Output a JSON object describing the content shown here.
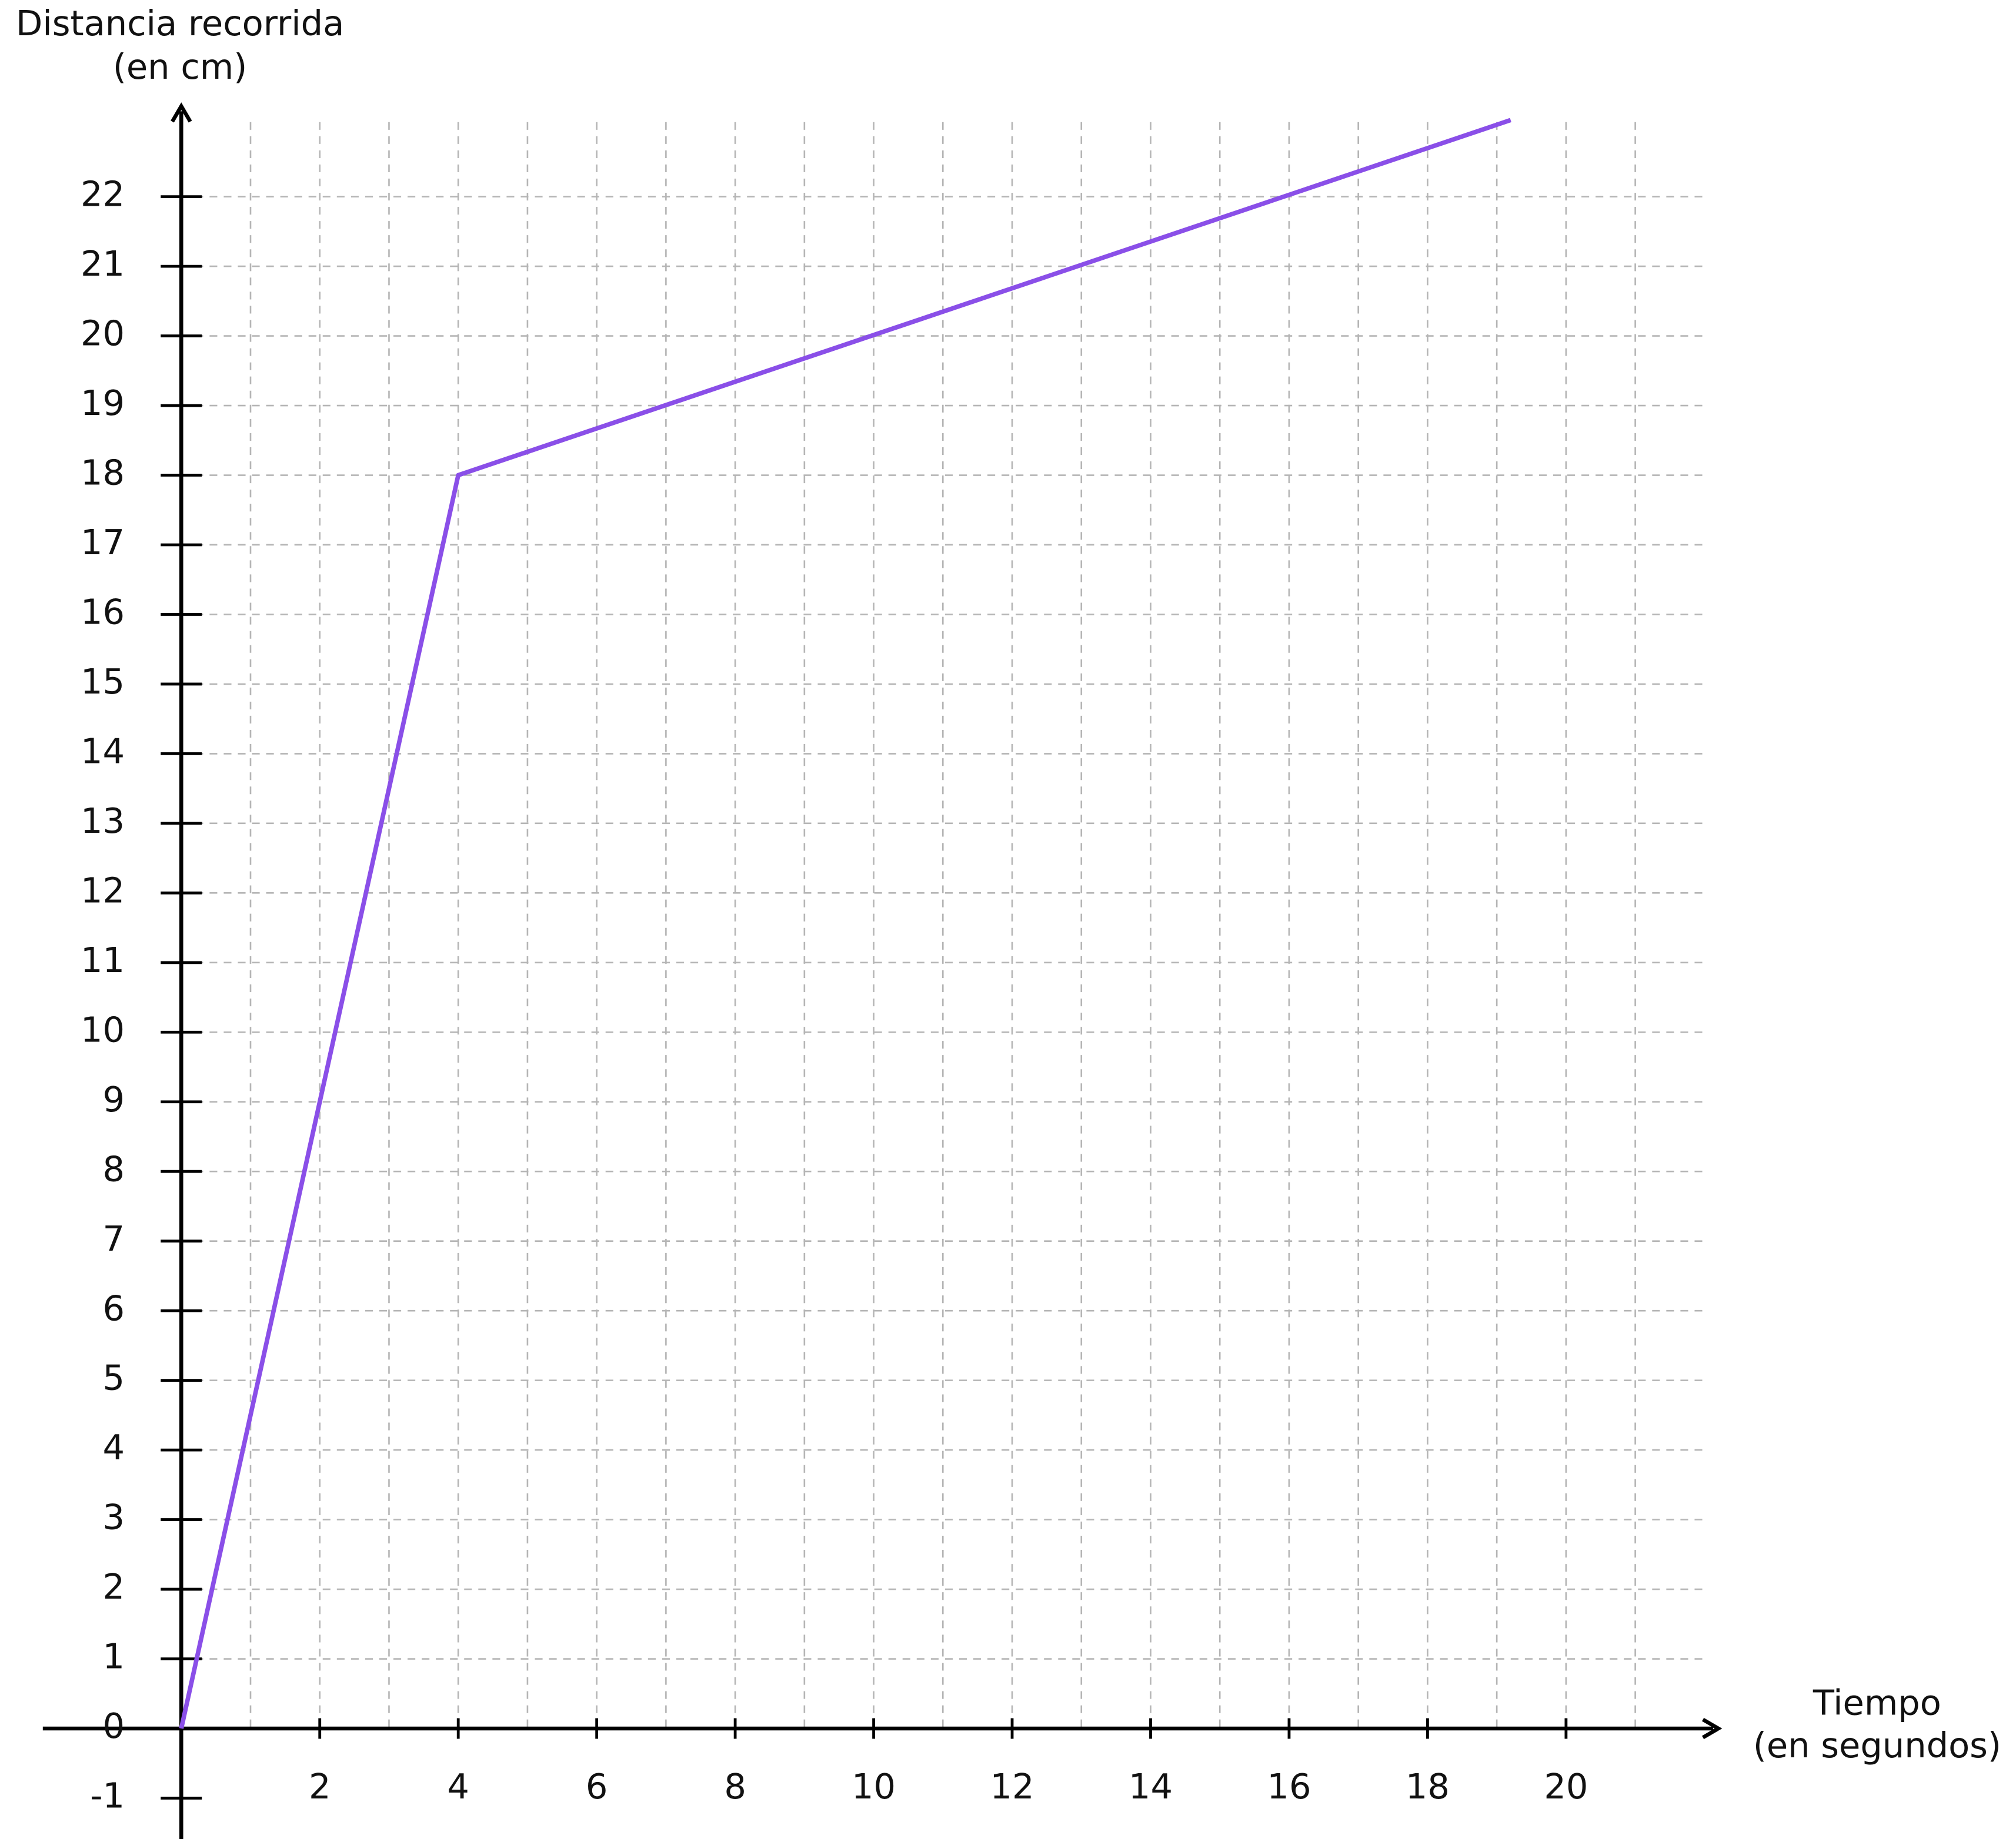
{
  "chart_data": {
    "type": "line",
    "y_axis_label": [
      "Distancia recorrida",
      "(en cm)"
    ],
    "x_axis_label": [
      "Tiempo",
      "(en segundos)"
    ],
    "x": [
      0,
      4,
      19.2
    ],
    "series": [
      {
        "color": "#8a4fe8",
        "values": [
          0,
          18,
          23.1
        ]
      }
    ],
    "xlim": [
      -2,
      22.2
    ],
    "ylim": [
      -1.6,
      23.3
    ],
    "xticks": [
      2,
      4,
      6,
      8,
      10,
      12,
      14,
      16,
      18,
      20
    ],
    "x_minor_ticks": [
      1,
      3,
      5,
      7,
      9,
      11,
      13,
      15,
      17,
      19,
      21
    ],
    "yticks": [
      -1,
      0,
      1,
      2,
      3,
      4,
      5,
      6,
      7,
      8,
      9,
      10,
      11,
      12,
      13,
      14,
      15,
      16,
      17,
      18,
      19,
      20,
      21,
      22
    ],
    "grid": true
  }
}
